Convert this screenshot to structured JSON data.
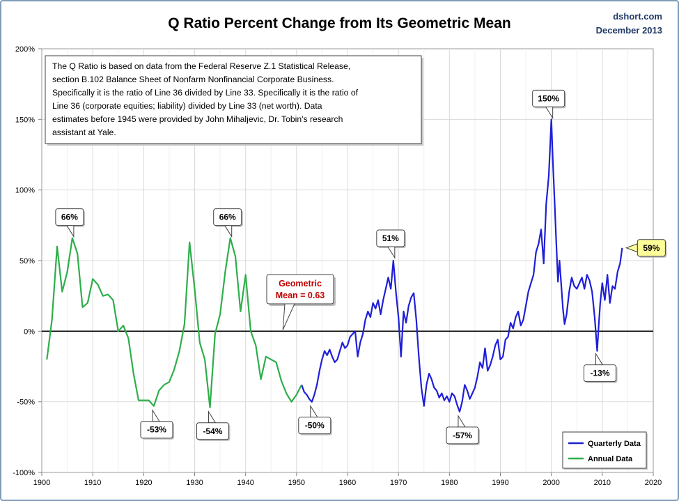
{
  "header": {
    "title": "Q Ratio Percent Change from Its Geometric Mean",
    "source_site": "dshort.com",
    "source_date": "December 2013"
  },
  "note": {
    "lines": [
      "The Q Ratio is based on data from the Federal Reserve Z.1 Statistical Release,",
      "section B.102 Balance Sheet of Nonfarm Nonfinancial Corporate Business.",
      "Specifically it is the ratio of Line 36 divided by Line 33. Specifically it is the ratio of",
      "Line 36 (corporate equities; liability) divided by Line 33 (net worth). Data",
      "estimates before 1945 were provided by John Mihaljevic, Dr. Tobin's research",
      "assistant at Yale."
    ]
  },
  "mean_label": {
    "line1": "Geometric",
    "line2": "Mean = 0.63",
    "color": "#c00000"
  },
  "chart_data": {
    "type": "line",
    "title": "Q Ratio Percent Change from Its Geometric Mean",
    "xlim": [
      1900,
      2020
    ],
    "ylim": [
      -100,
      200
    ],
    "x_ticks": [
      1900,
      1910,
      1920,
      1930,
      1940,
      1950,
      1960,
      1970,
      1980,
      1990,
      2000,
      2010,
      2020
    ],
    "y_ticks": [
      {
        "value": -100,
        "label": "-100%"
      },
      {
        "value": -50,
        "label": "-50%"
      },
      {
        "value": 0,
        "label": "0%"
      },
      {
        "value": 50,
        "label": "50%"
      },
      {
        "value": 100,
        "label": "100%"
      },
      {
        "value": 150,
        "label": "150%"
      },
      {
        "value": 200,
        "label": "200%"
      }
    ],
    "grid": true,
    "legend_position": "bottom-right",
    "series": [
      {
        "name": "Quarterly Data",
        "color": "#1f1fd8",
        "points": [
          [
            1951.0,
            -38
          ],
          [
            1951.5,
            -43
          ],
          [
            1952.0,
            -45
          ],
          [
            1952.5,
            -48
          ],
          [
            1953.0,
            -50
          ],
          [
            1953.5,
            -45
          ],
          [
            1954.0,
            -38
          ],
          [
            1954.5,
            -28
          ],
          [
            1955.0,
            -20
          ],
          [
            1955.5,
            -14
          ],
          [
            1956.0,
            -17
          ],
          [
            1956.5,
            -13
          ],
          [
            1957.0,
            -18
          ],
          [
            1957.5,
            -22
          ],
          [
            1958.0,
            -20
          ],
          [
            1958.5,
            -14
          ],
          [
            1959.0,
            -8
          ],
          [
            1959.5,
            -12
          ],
          [
            1960.0,
            -10
          ],
          [
            1960.5,
            -4
          ],
          [
            1961.0,
            -2
          ],
          [
            1961.5,
            0
          ],
          [
            1962.0,
            -18
          ],
          [
            1962.5,
            -8
          ],
          [
            1963.0,
            -2
          ],
          [
            1963.5,
            8
          ],
          [
            1964.0,
            14
          ],
          [
            1964.5,
            10
          ],
          [
            1965.0,
            20
          ],
          [
            1965.5,
            16
          ],
          [
            1966.0,
            22
          ],
          [
            1966.5,
            12
          ],
          [
            1967.0,
            22
          ],
          [
            1967.5,
            30
          ],
          [
            1968.0,
            38
          ],
          [
            1968.5,
            30
          ],
          [
            1969.0,
            50
          ],
          [
            1969.5,
            28
          ],
          [
            1970.0,
            10
          ],
          [
            1970.5,
            -18
          ],
          [
            1971.0,
            14
          ],
          [
            1971.5,
            6
          ],
          [
            1972.0,
            18
          ],
          [
            1972.5,
            24
          ],
          [
            1973.0,
            27
          ],
          [
            1973.5,
            8
          ],
          [
            1974.0,
            -18
          ],
          [
            1974.5,
            -40
          ],
          [
            1975.0,
            -53
          ],
          [
            1975.5,
            -38
          ],
          [
            1976.0,
            -30
          ],
          [
            1976.5,
            -34
          ],
          [
            1977.0,
            -40
          ],
          [
            1977.5,
            -42
          ],
          [
            1978.0,
            -47
          ],
          [
            1978.5,
            -44
          ],
          [
            1979.0,
            -49
          ],
          [
            1979.5,
            -46
          ],
          [
            1980.0,
            -50
          ],
          [
            1980.5,
            -44
          ],
          [
            1981.0,
            -46
          ],
          [
            1981.5,
            -52
          ],
          [
            1982.0,
            -57
          ],
          [
            1982.5,
            -50
          ],
          [
            1983.0,
            -38
          ],
          [
            1983.5,
            -42
          ],
          [
            1984.0,
            -48
          ],
          [
            1984.5,
            -44
          ],
          [
            1985.0,
            -40
          ],
          [
            1985.5,
            -32
          ],
          [
            1986.0,
            -22
          ],
          [
            1986.5,
            -26
          ],
          [
            1987.0,
            -12
          ],
          [
            1987.5,
            -28
          ],
          [
            1988.0,
            -24
          ],
          [
            1988.5,
            -18
          ],
          [
            1989.0,
            -10
          ],
          [
            1989.5,
            -6
          ],
          [
            1990.0,
            -20
          ],
          [
            1990.5,
            -18
          ],
          [
            1991.0,
            -6
          ],
          [
            1991.5,
            -4
          ],
          [
            1992.0,
            6
          ],
          [
            1992.5,
            2
          ],
          [
            1993.0,
            10
          ],
          [
            1993.5,
            14
          ],
          [
            1994.0,
            4
          ],
          [
            1994.5,
            8
          ],
          [
            1995.0,
            18
          ],
          [
            1995.5,
            28
          ],
          [
            1996.0,
            34
          ],
          [
            1996.5,
            40
          ],
          [
            1997.0,
            56
          ],
          [
            1997.5,
            62
          ],
          [
            1998.0,
            72
          ],
          [
            1998.5,
            48
          ],
          [
            1999.0,
            90
          ],
          [
            1999.5,
            110
          ],
          [
            2000.0,
            150
          ],
          [
            2000.3,
            120
          ],
          [
            2000.6,
            95
          ],
          [
            2001.0,
            60
          ],
          [
            2001.3,
            35
          ],
          [
            2001.6,
            50
          ],
          [
            2002.0,
            30
          ],
          [
            2002.3,
            15
          ],
          [
            2002.6,
            5
          ],
          [
            2003.0,
            12
          ],
          [
            2003.5,
            28
          ],
          [
            2004.0,
            38
          ],
          [
            2004.5,
            32
          ],
          [
            2005.0,
            30
          ],
          [
            2005.5,
            34
          ],
          [
            2006.0,
            38
          ],
          [
            2006.5,
            30
          ],
          [
            2007.0,
            40
          ],
          [
            2007.5,
            36
          ],
          [
            2008.0,
            28
          ],
          [
            2008.5,
            10
          ],
          [
            2009.0,
            -14
          ],
          [
            2009.3,
            4
          ],
          [
            2009.6,
            20
          ],
          [
            2010.0,
            34
          ],
          [
            2010.5,
            22
          ],
          [
            2011.0,
            40
          ],
          [
            2011.5,
            20
          ],
          [
            2012.0,
            32
          ],
          [
            2012.5,
            30
          ],
          [
            2013.0,
            42
          ],
          [
            2013.5,
            48
          ],
          [
            2013.9,
            59
          ]
        ]
      },
      {
        "name": "Annual Data",
        "color": "#2eae4a",
        "points": [
          [
            1901,
            -20
          ],
          [
            1902,
            8
          ],
          [
            1903,
            60
          ],
          [
            1904,
            28
          ],
          [
            1905,
            42
          ],
          [
            1906,
            66
          ],
          [
            1907,
            55
          ],
          [
            1908,
            17
          ],
          [
            1909,
            20
          ],
          [
            1910,
            37
          ],
          [
            1911,
            33
          ],
          [
            1912,
            25
          ],
          [
            1913,
            26
          ],
          [
            1914,
            22
          ],
          [
            1915,
            0
          ],
          [
            1916,
            4
          ],
          [
            1917,
            -5
          ],
          [
            1918,
            -30
          ],
          [
            1919,
            -49
          ],
          [
            1920,
            -49
          ],
          [
            1921,
            -49
          ],
          [
            1922,
            -53
          ],
          [
            1923,
            -42
          ],
          [
            1924,
            -38
          ],
          [
            1925,
            -36
          ],
          [
            1926,
            -27
          ],
          [
            1927,
            -14
          ],
          [
            1928,
            5
          ],
          [
            1929,
            63
          ],
          [
            1930,
            30
          ],
          [
            1931,
            -8
          ],
          [
            1932,
            -20
          ],
          [
            1933,
            -54
          ],
          [
            1934,
            -2
          ],
          [
            1935,
            12
          ],
          [
            1936,
            42
          ],
          [
            1937,
            66
          ],
          [
            1938,
            53
          ],
          [
            1939,
            14
          ],
          [
            1940,
            40
          ],
          [
            1941,
            0
          ],
          [
            1942,
            -10
          ],
          [
            1943,
            -34
          ],
          [
            1944,
            -18
          ],
          [
            1945,
            -20
          ],
          [
            1946,
            -22
          ],
          [
            1947,
            -35
          ],
          [
            1948,
            -44
          ],
          [
            1949,
            -50
          ],
          [
            1950,
            -45
          ],
          [
            1951,
            -38
          ]
        ]
      }
    ],
    "annotations": [
      {
        "x": 1906,
        "y": 66,
        "label": "66%",
        "pointer": "down"
      },
      {
        "x": 1937,
        "y": 66,
        "label": "66%",
        "pointer": "down"
      },
      {
        "x": 1969,
        "y": 51,
        "label": "51%",
        "pointer": "down"
      },
      {
        "x": 2000,
        "y": 150,
        "label": "150%",
        "pointer": "down"
      },
      {
        "x": 1922,
        "y": -53,
        "label": "-53%",
        "pointer": "up"
      },
      {
        "x": 1933,
        "y": -54,
        "label": "-54%",
        "pointer": "up"
      },
      {
        "x": 1953,
        "y": -50,
        "label": "-50%",
        "pointer": "up"
      },
      {
        "x": 1982,
        "y": -57,
        "label": "-57%",
        "pointer": "up"
      },
      {
        "x": 2009,
        "y": -13,
        "label": "-13%",
        "pointer": "up"
      },
      {
        "x": 2013.9,
        "y": 59,
        "label": "59%",
        "pointer": "left",
        "fill": "#ffff99"
      }
    ]
  }
}
